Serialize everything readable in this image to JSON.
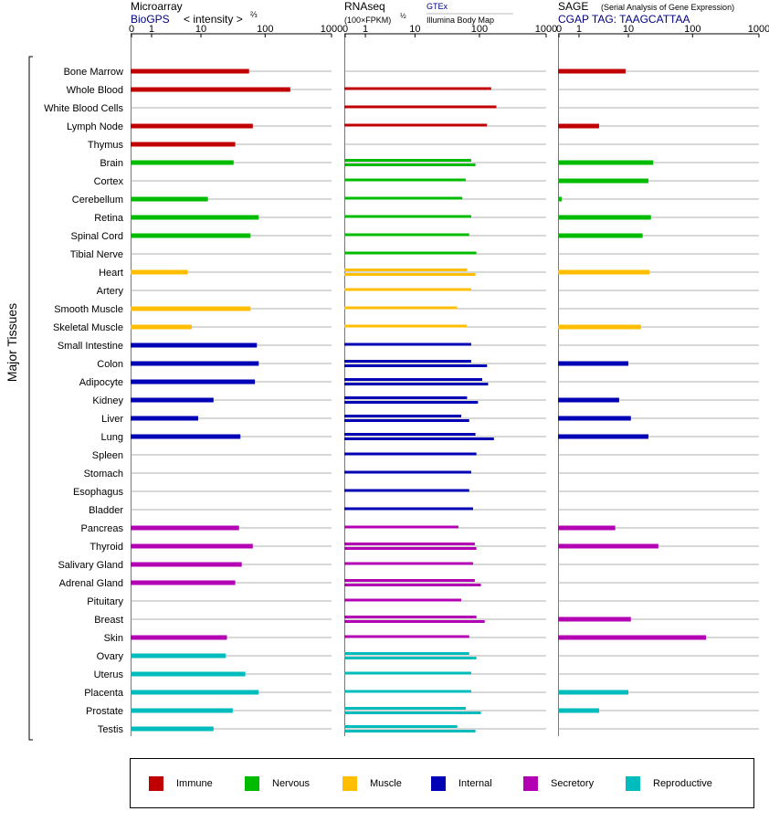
{
  "colors": {
    "immune": "#c00000",
    "nervous": "#00bb00",
    "muscle": "#ffbf00",
    "internal": "#0000b5",
    "secretory": "#b300b3",
    "reproductive": "#00bcbc",
    "header_link": "#000080"
  },
  "panels": {
    "microarray": {
      "title": "Microarray",
      "source": "BioGPS",
      "measure": "< intensity >",
      "exponent": "⅔"
    },
    "rnaseq": {
      "title": "RNAseq",
      "unit": "(100×FPKM)",
      "exponent": "½",
      "source_a": "GTEx",
      "source_b": "Illumina Body Map"
    },
    "sage": {
      "title": "SAGE",
      "subtitle": "(Serial Analysis of Gene Expression)",
      "tag": "CGAP TAG: TAAGCATTAA"
    }
  },
  "axis_title": "Major Tissues",
  "legend": [
    {
      "label": "Immune",
      "group": "immune"
    },
    {
      "label": "Nervous",
      "group": "nervous"
    },
    {
      "label": "Muscle",
      "group": "muscle"
    },
    {
      "label": "Internal",
      "group": "internal"
    },
    {
      "label": "Secretory",
      "group": "secretory"
    },
    {
      "label": "Reproductive",
      "group": "reproductive"
    }
  ],
  "chart_data": {
    "type": "bar",
    "scale": "log",
    "xlim": [
      0,
      1000
    ],
    "ticks": [
      "0",
      "1",
      "10",
      "100",
      "1000"
    ],
    "tick_values": [
      0,
      1,
      10,
      100,
      1000
    ],
    "categories": [
      "Bone Marrow",
      "Whole Blood",
      "White Blood Cells",
      "Lymph Node",
      "Thymus",
      "Brain",
      "Cortex",
      "Cerebellum",
      "Retina",
      "Spinal Cord",
      "Tibial Nerve",
      "Heart",
      "Artery",
      "Smooth Muscle",
      "Skeletal Muscle",
      "Small Intestine",
      "Colon",
      "Adipocyte",
      "Kidney",
      "Liver",
      "Lung",
      "Spleen",
      "Stomach",
      "Esophagus",
      "Bladder",
      "Pancreas",
      "Thyroid",
      "Salivary Gland",
      "Adrenal Gland",
      "Pituitary",
      "Breast",
      "Skin",
      "Ovary",
      "Uterus",
      "Placenta",
      "Prostate",
      "Testis"
    ],
    "groups": [
      "immune",
      "immune",
      "immune",
      "immune",
      "immune",
      "nervous",
      "nervous",
      "nervous",
      "nervous",
      "nervous",
      "nervous",
      "muscle",
      "muscle",
      "muscle",
      "muscle",
      "internal",
      "internal",
      "internal",
      "internal",
      "internal",
      "internal",
      "internal",
      "internal",
      "internal",
      "internal",
      "secretory",
      "secretory",
      "secretory",
      "secretory",
      "secretory",
      "secretory",
      "secretory",
      "reproductive",
      "reproductive",
      "reproductive",
      "reproductive",
      "reproductive"
    ],
    "microarray": [
      57,
      240,
      null,
      65,
      35,
      33,
      null,
      13,
      80,
      60,
      null,
      6,
      null,
      60,
      7,
      75,
      80,
      70,
      16,
      9,
      42,
      null,
      null,
      null,
      null,
      40,
      65,
      44,
      35,
      null,
      null,
      26,
      25,
      50,
      80,
      32,
      16
    ],
    "rnaseq_gtex": [
      null,
      150,
      180,
      130,
      null,
      75,
      62,
      55,
      75,
      70,
      90,
      65,
      75,
      46,
      64,
      75,
      75,
      110,
      65,
      53,
      87,
      90,
      75,
      70,
      80,
      48,
      85,
      80,
      85,
      53,
      90,
      70,
      70,
      75,
      75,
      62,
      46
    ],
    "rnaseq_ibm": [
      null,
      null,
      null,
      null,
      null,
      87,
      null,
      null,
      null,
      null,
      null,
      87,
      null,
      null,
      null,
      null,
      130,
      135,
      95,
      70,
      165,
      null,
      null,
      null,
      null,
      null,
      90,
      null,
      105,
      null,
      120,
      null,
      90,
      null,
      null,
      105,
      87
    ],
    "sage": [
      9,
      null,
      null,
      3,
      null,
      25,
      21,
      0.1,
      23,
      17,
      null,
      22,
      null,
      null,
      16,
      null,
      10,
      null,
      7,
      11,
      21,
      null,
      null,
      null,
      null,
      6,
      30,
      null,
      null,
      null,
      11,
      160,
      null,
      null,
      10,
      3,
      null
    ]
  }
}
